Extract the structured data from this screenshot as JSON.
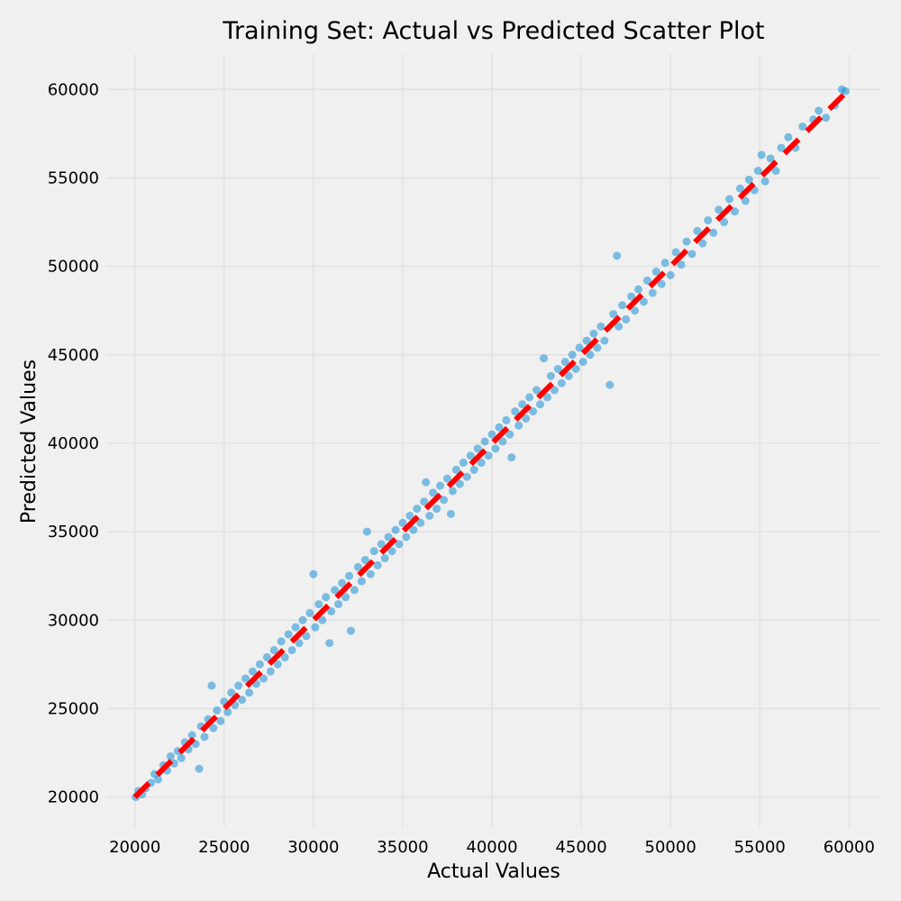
{
  "chart_data": {
    "type": "scatter",
    "title": "Training Set: Actual vs Predicted Scatter Plot",
    "xlabel": "Actual Values",
    "ylabel": "Predicted Values",
    "xlim": [
      18400,
      61800
    ],
    "ylim": [
      18300,
      62000
    ],
    "xticks": [
      20000,
      25000,
      30000,
      35000,
      40000,
      45000,
      50000,
      55000,
      60000
    ],
    "yticks": [
      20000,
      25000,
      30000,
      35000,
      40000,
      45000,
      50000,
      55000,
      60000
    ],
    "grid": true,
    "series": [
      {
        "kind": "points",
        "color": "#1a8fd6",
        "points": [
          [
            20050,
            20000
          ],
          [
            20200,
            20350
          ],
          [
            20400,
            20150
          ],
          [
            20600,
            20500
          ],
          [
            20900,
            20800
          ],
          [
            21100,
            21300
          ],
          [
            21300,
            21000
          ],
          [
            21600,
            21800
          ],
          [
            21800,
            21500
          ],
          [
            22000,
            22300
          ],
          [
            22200,
            21900
          ],
          [
            22400,
            22600
          ],
          [
            22600,
            22200
          ],
          [
            22800,
            23100
          ],
          [
            23000,
            22700
          ],
          [
            23200,
            23500
          ],
          [
            23400,
            23000
          ],
          [
            23600,
            21600
          ],
          [
            23700,
            24000
          ],
          [
            23900,
            23400
          ],
          [
            24100,
            24400
          ],
          [
            24300,
            26300
          ],
          [
            24400,
            23900
          ],
          [
            24600,
            24900
          ],
          [
            24800,
            24300
          ],
          [
            25000,
            25400
          ],
          [
            25200,
            24800
          ],
          [
            25400,
            25900
          ],
          [
            25600,
            25200
          ],
          [
            25800,
            26300
          ],
          [
            26000,
            25500
          ],
          [
            26200,
            26700
          ],
          [
            26400,
            25900
          ],
          [
            26600,
            27100
          ],
          [
            26800,
            26400
          ],
          [
            27000,
            27500
          ],
          [
            27200,
            26700
          ],
          [
            27400,
            27900
          ],
          [
            27600,
            27100
          ],
          [
            27800,
            28300
          ],
          [
            28000,
            27500
          ],
          [
            28200,
            28800
          ],
          [
            28400,
            27900
          ],
          [
            28600,
            29200
          ],
          [
            28800,
            28300
          ],
          [
            29000,
            29600
          ],
          [
            29200,
            28700
          ],
          [
            29400,
            30000
          ],
          [
            29600,
            29100
          ],
          [
            29800,
            30400
          ],
          [
            30000,
            32600
          ],
          [
            30100,
            29600
          ],
          [
            30300,
            30900
          ],
          [
            30500,
            30000
          ],
          [
            30700,
            31300
          ],
          [
            30900,
            28700
          ],
          [
            31000,
            30500
          ],
          [
            31200,
            31700
          ],
          [
            31400,
            30900
          ],
          [
            31600,
            32100
          ],
          [
            31800,
            31300
          ],
          [
            32000,
            32500
          ],
          [
            32100,
            29400
          ],
          [
            32300,
            31700
          ],
          [
            32500,
            33000
          ],
          [
            32700,
            32200
          ],
          [
            32900,
            33400
          ],
          [
            33000,
            35000
          ],
          [
            33200,
            32600
          ],
          [
            33400,
            33900
          ],
          [
            33600,
            33100
          ],
          [
            33800,
            34300
          ],
          [
            34000,
            33500
          ],
          [
            34200,
            34700
          ],
          [
            34400,
            33900
          ],
          [
            34600,
            35100
          ],
          [
            34800,
            34300
          ],
          [
            35000,
            35500
          ],
          [
            35200,
            34700
          ],
          [
            35400,
            35900
          ],
          [
            35600,
            35100
          ],
          [
            35800,
            36300
          ],
          [
            36000,
            35500
          ],
          [
            36200,
            36700
          ],
          [
            36300,
            37800
          ],
          [
            36500,
            35900
          ],
          [
            36700,
            37200
          ],
          [
            36900,
            36300
          ],
          [
            37100,
            37600
          ],
          [
            37300,
            36800
          ],
          [
            37500,
            38000
          ],
          [
            37700,
            36000
          ],
          [
            37800,
            37300
          ],
          [
            38000,
            38500
          ],
          [
            38200,
            37700
          ],
          [
            38400,
            38900
          ],
          [
            38600,
            38100
          ],
          [
            38800,
            39300
          ],
          [
            39000,
            38500
          ],
          [
            39200,
            39700
          ],
          [
            39400,
            38900
          ],
          [
            39600,
            40100
          ],
          [
            39800,
            39300
          ],
          [
            40000,
            40500
          ],
          [
            40200,
            39700
          ],
          [
            40400,
            40900
          ],
          [
            40600,
            40100
          ],
          [
            40800,
            41300
          ],
          [
            41000,
            40500
          ],
          [
            41100,
            39200
          ],
          [
            41300,
            41800
          ],
          [
            41500,
            41000
          ],
          [
            41700,
            42200
          ],
          [
            41900,
            41400
          ],
          [
            42100,
            42600
          ],
          [
            42300,
            41800
          ],
          [
            42500,
            43000
          ],
          [
            42700,
            42200
          ],
          [
            42900,
            44800
          ],
          [
            43100,
            42600
          ],
          [
            43300,
            43800
          ],
          [
            43500,
            43000
          ],
          [
            43700,
            44200
          ],
          [
            43900,
            43400
          ],
          [
            44100,
            44600
          ],
          [
            44300,
            43800
          ],
          [
            44500,
            45000
          ],
          [
            44700,
            44200
          ],
          [
            44900,
            45400
          ],
          [
            45100,
            44600
          ],
          [
            45300,
            45800
          ],
          [
            45500,
            45000
          ],
          [
            45700,
            46200
          ],
          [
            45900,
            45400
          ],
          [
            46100,
            46600
          ],
          [
            46300,
            45800
          ],
          [
            46600,
            43300
          ],
          [
            46800,
            47300
          ],
          [
            47000,
            50600
          ],
          [
            47100,
            46600
          ],
          [
            47300,
            47800
          ],
          [
            47500,
            47000
          ],
          [
            47800,
            48300
          ],
          [
            48000,
            47500
          ],
          [
            48200,
            48700
          ],
          [
            48500,
            48000
          ],
          [
            48700,
            49200
          ],
          [
            49000,
            48500
          ],
          [
            49200,
            49700
          ],
          [
            49500,
            49000
          ],
          [
            49700,
            50200
          ],
          [
            50000,
            49500
          ],
          [
            50300,
            50800
          ],
          [
            50600,
            50100
          ],
          [
            50900,
            51400
          ],
          [
            51200,
            50700
          ],
          [
            51500,
            52000
          ],
          [
            51800,
            51300
          ],
          [
            52100,
            52600
          ],
          [
            52400,
            51900
          ],
          [
            52700,
            53200
          ],
          [
            53000,
            52500
          ],
          [
            53300,
            53800
          ],
          [
            53600,
            53100
          ],
          [
            53900,
            54400
          ],
          [
            54200,
            53700
          ],
          [
            54400,
            54900
          ],
          [
            54700,
            54300
          ],
          [
            54900,
            55400
          ],
          [
            55100,
            56300
          ],
          [
            55300,
            54800
          ],
          [
            55600,
            56100
          ],
          [
            55900,
            55400
          ],
          [
            56200,
            56700
          ],
          [
            56600,
            57300
          ],
          [
            57000,
            56700
          ],
          [
            57400,
            57900
          ],
          [
            58000,
            58300
          ],
          [
            58300,
            58800
          ],
          [
            58700,
            58400
          ],
          [
            59200,
            59100
          ],
          [
            59600,
            60000
          ],
          [
            59800,
            59900
          ]
        ]
      },
      {
        "kind": "reference-line",
        "color": "#ff0000",
        "style": "dashed",
        "x": [
          20000,
          59800
        ],
        "y": [
          20000,
          59800
        ]
      }
    ]
  }
}
